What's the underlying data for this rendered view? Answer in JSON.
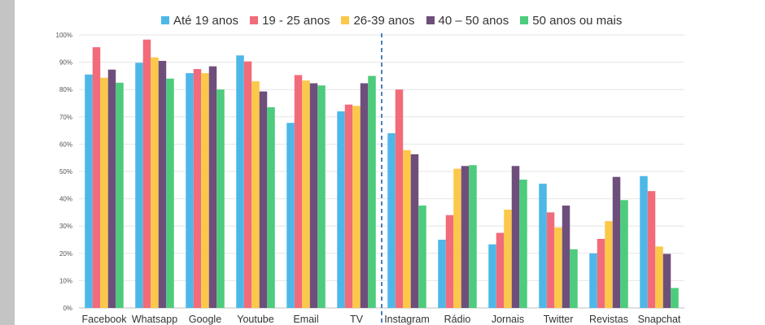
{
  "chart_data": {
    "type": "bar",
    "title": "",
    "xlabel": "",
    "ylabel": "",
    "ylim": [
      0,
      100
    ],
    "y_ticks": [
      "0%",
      "10%",
      "20%",
      "30%",
      "40%",
      "50%",
      "60%",
      "70%",
      "80%",
      "90%",
      "100%"
    ],
    "grid": "horizontal",
    "legend_position": "top",
    "divider_after_category": "TV",
    "categories": [
      "Facebook",
      "Whatsapp",
      "Google",
      "Youtube",
      "Email",
      "TV",
      "Instagram",
      "Rádio",
      "Jornais",
      "Twitter",
      "Revistas",
      "Snapchat"
    ],
    "series": [
      {
        "name": "Até 19 anos",
        "color": "#4db8e8",
        "values": [
          85.5,
          89.8,
          86.0,
          92.5,
          67.8,
          72.0,
          64.0,
          25.0,
          23.3,
          45.5,
          20.0,
          48.3
        ]
      },
      {
        "name": "19 - 25 anos",
        "color": "#f26b7a",
        "values": [
          95.5,
          98.3,
          87.5,
          90.3,
          85.3,
          74.5,
          80.0,
          34.0,
          27.5,
          35.0,
          25.3,
          42.8
        ]
      },
      {
        "name": "26-39 anos",
        "color": "#fbc84a",
        "values": [
          84.3,
          91.8,
          86.0,
          83.0,
          83.3,
          74.0,
          57.8,
          51.0,
          36.0,
          29.5,
          31.8,
          22.5
        ]
      },
      {
        "name": "40 – 50 anos",
        "color": "#6e4f7c",
        "values": [
          87.3,
          90.5,
          88.5,
          79.3,
          82.3,
          82.3,
          56.3,
          52.0,
          52.0,
          37.5,
          48.0,
          19.8
        ]
      },
      {
        "name": "50 anos ou mais",
        "color": "#4ccc7c",
        "values": [
          82.5,
          84.0,
          80.0,
          73.5,
          81.5,
          85.0,
          37.5,
          52.3,
          47.0,
          21.5,
          39.5,
          7.3
        ]
      }
    ]
  }
}
